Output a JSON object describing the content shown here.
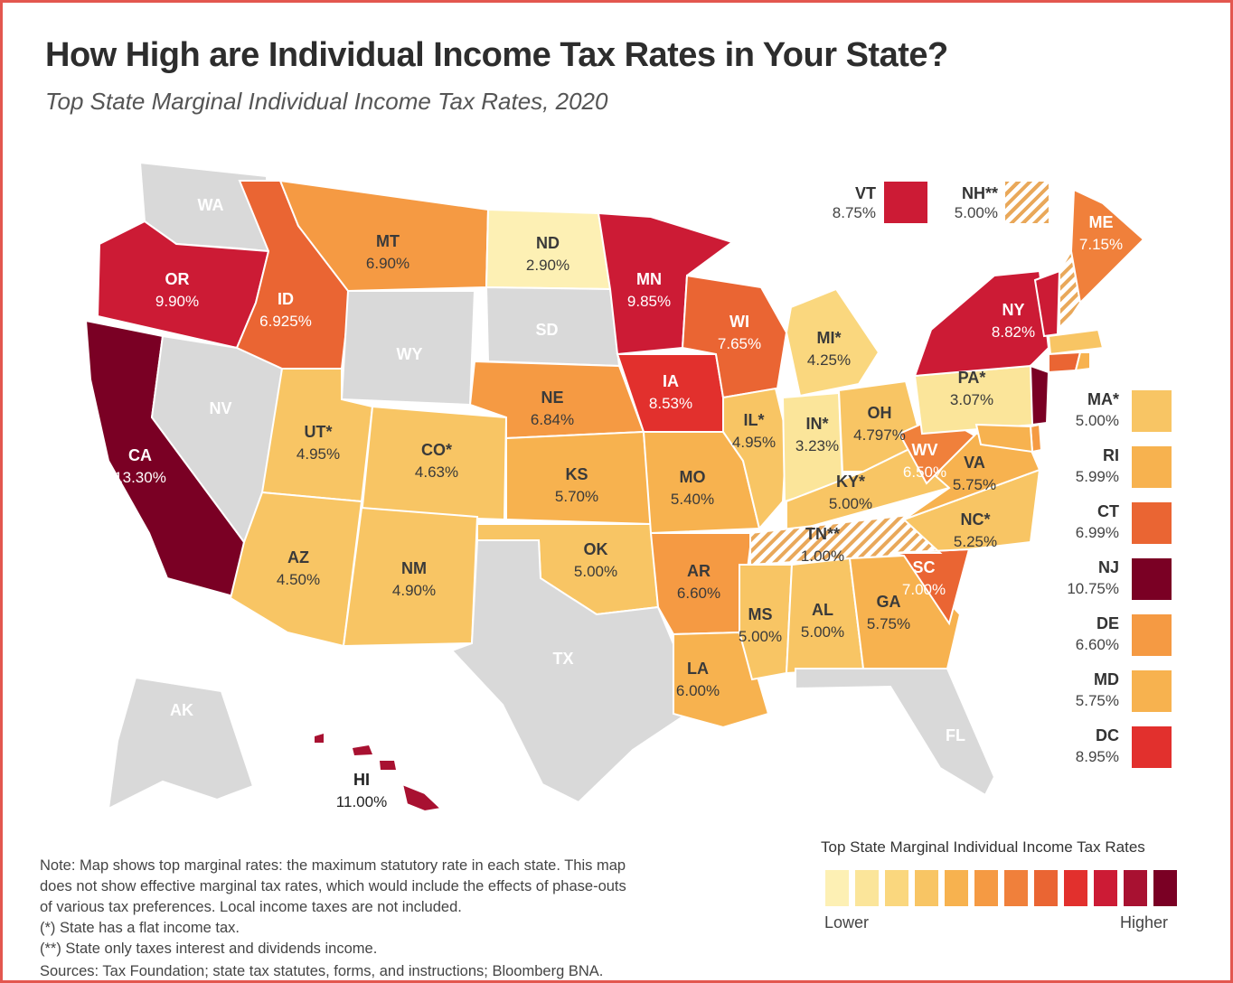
{
  "title": "How High are Individual Income Tax Rates in Your State?",
  "subtitle": "Top State Marginal Individual Income Tax Rates, 2020",
  "colors": {
    "no_tax": "#d9d9d9",
    "scale": [
      "#fdf0b4",
      "#fbe59a",
      "#fad77e",
      "#f8c564",
      "#f7b24f",
      "#f59a43",
      "#f0803b",
      "#ea6533",
      "#e2302d",
      "#cc1b35",
      "#a81131",
      "#7a0024"
    ]
  },
  "states": [
    {
      "abbr": "WA",
      "rate": "",
      "tier": "none"
    },
    {
      "abbr": "OR",
      "rate": "9.90%",
      "tier": 9
    },
    {
      "abbr": "CA",
      "rate": "13.30%",
      "tier": 11
    },
    {
      "abbr": "NV",
      "rate": "",
      "tier": "none"
    },
    {
      "abbr": "ID",
      "rate": "6.925%",
      "tier": 7
    },
    {
      "abbr": "MT",
      "rate": "6.90%",
      "tier": 5
    },
    {
      "abbr": "WY",
      "rate": "",
      "tier": "none"
    },
    {
      "abbr": "UT*",
      "rate": "4.95%",
      "tier": 3
    },
    {
      "abbr": "CO*",
      "rate": "4.63%",
      "tier": 3
    },
    {
      "abbr": "AZ",
      "rate": "4.50%",
      "tier": 3
    },
    {
      "abbr": "NM",
      "rate": "4.90%",
      "tier": 3
    },
    {
      "abbr": "ND",
      "rate": "2.90%",
      "tier": 0
    },
    {
      "abbr": "SD",
      "rate": "",
      "tier": "none"
    },
    {
      "abbr": "NE",
      "rate": "6.84%",
      "tier": 5
    },
    {
      "abbr": "KS",
      "rate": "5.70%",
      "tier": 4
    },
    {
      "abbr": "OK",
      "rate": "5.00%",
      "tier": 3
    },
    {
      "abbr": "TX",
      "rate": "",
      "tier": "none"
    },
    {
      "abbr": "MN",
      "rate": "9.85%",
      "tier": 9
    },
    {
      "abbr": "IA",
      "rate": "8.53%",
      "tier": 8
    },
    {
      "abbr": "MO",
      "rate": "5.40%",
      "tier": 4
    },
    {
      "abbr": "AR",
      "rate": "6.60%",
      "tier": 5
    },
    {
      "abbr": "LA",
      "rate": "6.00%",
      "tier": 4
    },
    {
      "abbr": "WI",
      "rate": "7.65%",
      "tier": 7
    },
    {
      "abbr": "IL*",
      "rate": "4.95%",
      "tier": 3
    },
    {
      "abbr": "MI*",
      "rate": "4.25%",
      "tier": 2
    },
    {
      "abbr": "IN*",
      "rate": "3.23%",
      "tier": 1
    },
    {
      "abbr": "OH",
      "rate": "4.797%",
      "tier": 3
    },
    {
      "abbr": "KY*",
      "rate": "5.00%",
      "tier": 3
    },
    {
      "abbr": "TN**",
      "rate": "1.00%",
      "tier": "hatch"
    },
    {
      "abbr": "MS",
      "rate": "5.00%",
      "tier": 3
    },
    {
      "abbr": "AL",
      "rate": "5.00%",
      "tier": 3
    },
    {
      "abbr": "GA",
      "rate": "5.75%",
      "tier": 4
    },
    {
      "abbr": "FL",
      "rate": "",
      "tier": "none"
    },
    {
      "abbr": "SC",
      "rate": "7.00%",
      "tier": 7
    },
    {
      "abbr": "NC*",
      "rate": "5.25%",
      "tier": 3
    },
    {
      "abbr": "VA",
      "rate": "5.75%",
      "tier": 4
    },
    {
      "abbr": "WV",
      "rate": "6.50%",
      "tier": 6
    },
    {
      "abbr": "PA*",
      "rate": "3.07%",
      "tier": 1
    },
    {
      "abbr": "NY",
      "rate": "8.82%",
      "tier": 9
    },
    {
      "abbr": "ME",
      "rate": "7.15%",
      "tier": 6
    },
    {
      "abbr": "AK",
      "rate": "",
      "tier": "none"
    },
    {
      "abbr": "HI",
      "rate": "11.00%",
      "tier": 10
    }
  ],
  "callouts": [
    {
      "abbr": "VT",
      "rate": "8.75%",
      "tier": 9
    },
    {
      "abbr": "NH**",
      "rate": "5.00%",
      "tier": "hatch"
    }
  ],
  "side_states": [
    {
      "abbr": "MA*",
      "rate": "5.00%",
      "tier": 3
    },
    {
      "abbr": "RI",
      "rate": "5.99%",
      "tier": 4
    },
    {
      "abbr": "CT",
      "rate": "6.99%",
      "tier": 7
    },
    {
      "abbr": "NJ",
      "rate": "10.75%",
      "tier": 11
    },
    {
      "abbr": "DE",
      "rate": "6.60%",
      "tier": 5
    },
    {
      "abbr": "MD",
      "rate": "5.75%",
      "tier": 4
    },
    {
      "abbr": "DC",
      "rate": "8.95%",
      "tier": 8
    }
  ],
  "legend": {
    "title": "Top State Marginal Individual Income Tax Rates",
    "low_label": "Lower",
    "high_label": "Higher"
  },
  "notes": [
    "Note: Map shows top marginal rates: the maximum statutory rate in each state. This map",
    "does not show effective marginal tax rates, which would include the effects of phase-outs",
    "of various tax preferences. Local income taxes are not included.",
    "(*) State has a flat income tax.",
    "(**) State only taxes interest and dividends income."
  ],
  "sources": "Sources: Tax Foundation; state tax statutes, forms, and instructions; Bloomberg BNA."
}
